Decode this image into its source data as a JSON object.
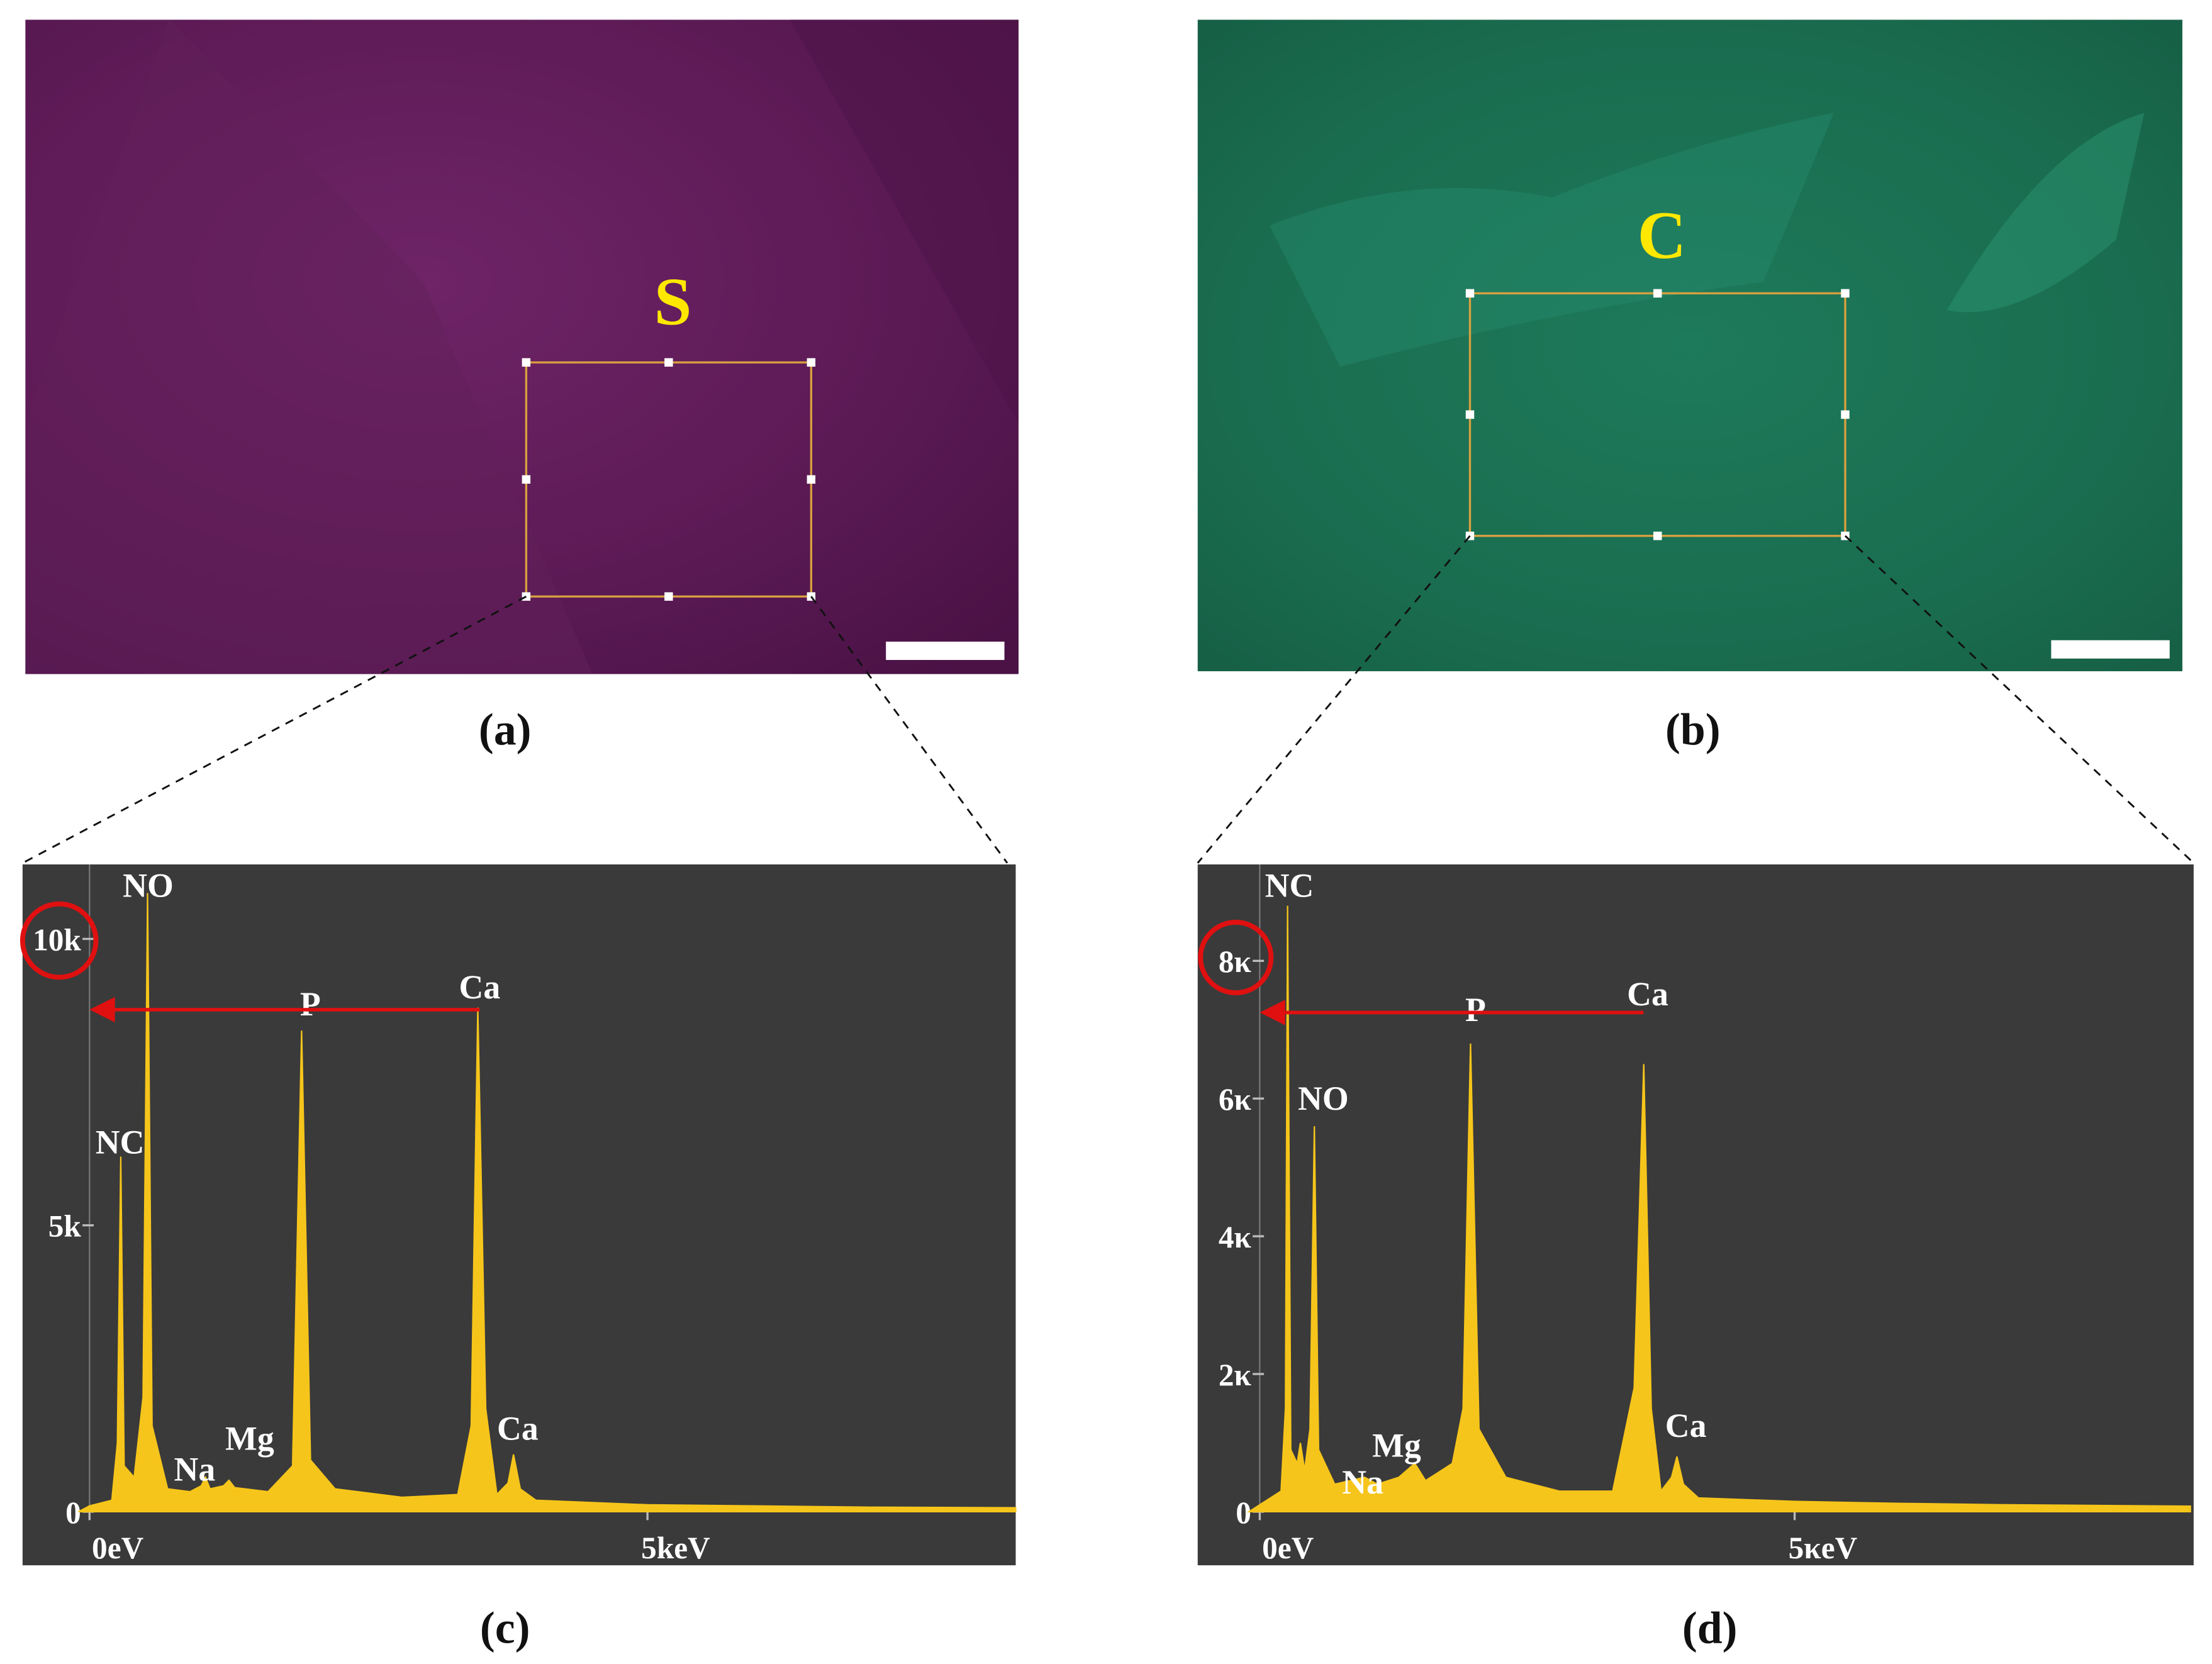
{
  "figure": {
    "captions": [
      "(a)",
      "(b)",
      "(c)",
      "(d)"
    ],
    "image_labels": [
      "S",
      "C"
    ]
  },
  "chart_data": [
    {
      "type": "area",
      "color": "#f6c51b",
      "x": [
        -0.1,
        0,
        0.2,
        0.25,
        0.28,
        0.31,
        0.4,
        0.48,
        0.52,
        0.56,
        0.7,
        0.9,
        1.0,
        1.04,
        1.08,
        1.2,
        1.25,
        1.3,
        1.6,
        1.82,
        1.9,
        1.98,
        2.2,
        2.8,
        3.3,
        3.42,
        3.48,
        3.55,
        3.65,
        3.75,
        3.8,
        3.86,
        4.0,
        5.0,
        6.0,
        7.0,
        8.3
      ],
      "values": [
        0,
        100,
        200,
        1200,
        6200,
        800,
        600,
        2000,
        10800,
        1500,
        400,
        350,
        450,
        600,
        400,
        450,
        550,
        420,
        350,
        800,
        8400,
        900,
        400,
        250,
        300,
        1500,
        8800,
        1800,
        300,
        500,
        1000,
        400,
        200,
        120,
        100,
        80,
        70
      ],
      "xlim": [
        -0.6,
        8.3
      ],
      "ylim": [
        0,
        11300
      ],
      "xticks": [
        {
          "value": 0,
          "label": "0eV"
        },
        {
          "value": 5,
          "label": "5keV"
        }
      ],
      "yticks": [
        0,
        {
          "value": 5000,
          "label": "5k"
        },
        {
          "value": 10000,
          "label": "10k"
        }
      ],
      "annotations": [
        "NO",
        "NC",
        "Na",
        "Mg",
        "P",
        "Ca",
        "Ca"
      ]
    },
    {
      "type": "area",
      "color": "#f6c51b",
      "x": [
        -0.1,
        0,
        0.2,
        0.24,
        0.26,
        0.29,
        0.35,
        0.38,
        0.42,
        0.47,
        0.51,
        0.55,
        0.7,
        0.98,
        1.1,
        1.3,
        1.45,
        1.55,
        1.8,
        1.9,
        1.97,
        2.05,
        2.3,
        2.8,
        3.3,
        3.5,
        3.59,
        3.66,
        3.75,
        3.85,
        3.9,
        3.96,
        4.1,
        5.0,
        6.0,
        7.0,
        8.7
      ],
      "values": [
        0,
        100,
        300,
        1500,
        8800,
        900,
        700,
        1000,
        600,
        1200,
        5600,
        900,
        400,
        500,
        400,
        500,
        700,
        450,
        700,
        1500,
        6800,
        1200,
        500,
        300,
        300,
        1800,
        6500,
        1500,
        300,
        500,
        800,
        400,
        200,
        150,
        120,
        100,
        80
      ],
      "xlim": [
        -0.58,
        8.73
      ],
      "ylim": [
        0,
        9400
      ],
      "xticks": [
        {
          "value": 0,
          "label": "0eV"
        },
        {
          "value": 5,
          "label": "5κeV"
        }
      ],
      "yticks": [
        0,
        {
          "value": 2000,
          "label": "2κ"
        },
        {
          "value": 4000,
          "label": "4κ"
        },
        {
          "value": 6000,
          "label": "6κ"
        },
        {
          "value": 8000,
          "label": "8κ"
        }
      ],
      "annotations": [
        "NC",
        "NO",
        "Na",
        "Mg",
        "P",
        "Ca",
        "Ca"
      ]
    }
  ]
}
